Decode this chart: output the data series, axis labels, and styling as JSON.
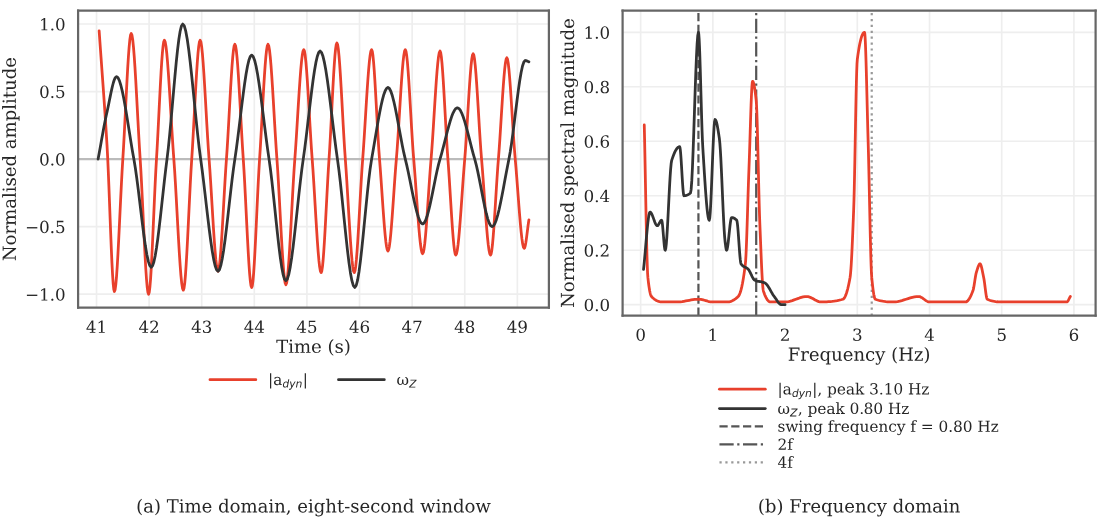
{
  "chart_data": [
    {
      "type": "line",
      "xlabel": "Time (s)",
      "ylabel": "Normalised amplitude",
      "xlim": [
        40.65,
        49.6
      ],
      "xticks": [
        41,
        42,
        43,
        44,
        45,
        46,
        47,
        48,
        49
      ],
      "ylim": [
        -1.1,
        1.1
      ],
      "yticks": [
        {
          "value": -1.0,
          "label": "−1.0"
        },
        {
          "value": -0.5,
          "label": "−0.5"
        },
        {
          "value": 0,
          "label": "0.0"
        },
        0.5,
        {
          "value": 1,
          "label": "1.0"
        }
      ],
      "grid": true,
      "legend": "bottom",
      "ref_lines": [
        {
          "axis": "y",
          "value": 0,
          "color": "#bbbbbb",
          "line_style": "solid"
        }
      ],
      "annotations": [
        "(a) Time domain, eight-second window"
      ],
      "series": [
        {
          "name": "|a$_{dyn}$|",
          "color": "#e8402c",
          "x": [
            41.05,
            41.2,
            41.34,
            41.5,
            41.66,
            41.83,
            41.99,
            42.14,
            42.29,
            42.47,
            42.65,
            42.81,
            42.97,
            43.14,
            43.31,
            43.47,
            43.63,
            43.79,
            43.95,
            44.1,
            44.26,
            44.43,
            44.6,
            44.77,
            44.94,
            45.1,
            45.27,
            45.42,
            45.57,
            45.73,
            45.9,
            46.06,
            46.23,
            46.38,
            46.54,
            46.7,
            46.87,
            47.03,
            47.2,
            47.36,
            47.53,
            47.68,
            47.83,
            48.0,
            48.16,
            48.32,
            48.49,
            48.64,
            48.8,
            48.96,
            49.13,
            49.22
          ],
          "values": [
            0.95,
            0.1,
            -0.98,
            0.0,
            0.93,
            0.0,
            -1.0,
            0.0,
            0.88,
            0.0,
            -0.97,
            0.0,
            0.88,
            0.0,
            -0.83,
            0.0,
            0.85,
            0.0,
            -0.95,
            0.0,
            0.85,
            0.0,
            -0.93,
            0.0,
            0.81,
            0.0,
            -0.84,
            0.0,
            0.86,
            0.0,
            -0.84,
            0.0,
            0.81,
            0.0,
            -0.68,
            0.0,
            0.81,
            0.0,
            -0.7,
            0.0,
            0.8,
            0.0,
            -0.71,
            0.0,
            0.78,
            0.0,
            -0.71,
            0.0,
            0.75,
            0.0,
            -0.66,
            -0.45
          ]
        },
        {
          "name": "ω$_{Z}$",
          "color": "#333333",
          "x": [
            41.03,
            41.2,
            41.38,
            41.71,
            42.04,
            42.34,
            42.64,
            42.98,
            43.31,
            43.63,
            43.95,
            44.28,
            44.6,
            44.93,
            45.25,
            45.58,
            45.91,
            46.23,
            46.54,
            46.87,
            47.2,
            47.53,
            47.86,
            48.19,
            48.52,
            48.84,
            49.15,
            49.22
          ],
          "values": [
            0.0,
            0.35,
            0.61,
            0.0,
            -0.8,
            0.0,
            1.0,
            0.0,
            -0.83,
            0.0,
            0.77,
            0.0,
            -0.9,
            0.0,
            0.8,
            0.0,
            -0.95,
            0.0,
            0.53,
            0.0,
            -0.48,
            0.0,
            0.38,
            0.0,
            -0.5,
            0.0,
            0.73,
            0.72
          ]
        }
      ]
    },
    {
      "type": "line",
      "xlabel": "Frequency (Hz)",
      "ylabel": "Normalised spectral magnitude",
      "xlim": [
        -0.25,
        6.3
      ],
      "xticks": [
        0,
        1,
        2,
        3,
        4,
        5,
        6
      ],
      "ylim": [
        -0.04,
        1.08
      ],
      "yticks": [
        {
          "value": 0,
          "label": "0.0"
        },
        0.2,
        0.4,
        0.6,
        0.8,
        {
          "value": 1,
          "label": "1.0"
        }
      ],
      "grid": true,
      "legend": "bottom",
      "ref_lines": [
        {
          "axis": "x",
          "value": 0.8,
          "label": "swing frequency f = 0.80 Hz",
          "color": "#555555",
          "line_style": "dashed"
        },
        {
          "axis": "x",
          "value": 1.6,
          "label": "2f",
          "color": "#555555",
          "line_style": "dashdot"
        },
        {
          "axis": "x",
          "value": 3.2,
          "label": "4f",
          "color": "#999999",
          "line_style": "dotted"
        }
      ],
      "annotations": [
        "(b) Frequency domain"
      ],
      "series": [
        {
          "name": "|a$_{dyn}$|, peak 3.10 Hz",
          "color": "#e8402c",
          "x": [
            0.05,
            0.1,
            0.15,
            0.3,
            0.5,
            0.8,
            1.0,
            1.2,
            1.35,
            1.45,
            1.5,
            1.55,
            1.6,
            1.65,
            1.7,
            1.8,
            2.0,
            2.3,
            2.5,
            2.8,
            2.9,
            2.95,
            3.0,
            3.1,
            3.15,
            3.2,
            3.25,
            3.5,
            3.85,
            4.0,
            4.5,
            4.6,
            4.65,
            4.7,
            4.75,
            4.8,
            5.0,
            5.5,
            5.9,
            5.95
          ],
          "values": [
            0.66,
            0.1,
            0.03,
            0.01,
            0.01,
            0.02,
            0.01,
            0.01,
            0.03,
            0.15,
            0.5,
            0.82,
            0.75,
            0.3,
            0.05,
            0.01,
            0.01,
            0.03,
            0.01,
            0.02,
            0.1,
            0.35,
            0.9,
            1.0,
            0.6,
            0.1,
            0.02,
            0.01,
            0.03,
            0.01,
            0.01,
            0.05,
            0.12,
            0.15,
            0.1,
            0.02,
            0.01,
            0.01,
            0.01,
            0.03
          ]
        },
        {
          "name": "ω$_{Z}$, peak 0.80 Hz",
          "color": "#333333",
          "x": [
            0.04,
            0.13,
            0.23,
            0.29,
            0.34,
            0.43,
            0.54,
            0.6,
            0.69,
            0.8,
            0.86,
            0.95,
            1.03,
            1.09,
            1.17,
            1.19,
            1.26,
            1.33,
            1.39,
            1.49,
            1.58,
            1.72,
            1.85,
            1.95,
            2.0
          ],
          "values": [
            0.13,
            0.34,
            0.29,
            0.31,
            0.2,
            0.53,
            0.58,
            0.4,
            0.41,
            1.0,
            0.58,
            0.31,
            0.68,
            0.61,
            0.23,
            0.2,
            0.32,
            0.31,
            0.15,
            0.13,
            0.09,
            0.08,
            0.03,
            0.0,
            0.0
          ]
        }
      ]
    }
  ]
}
